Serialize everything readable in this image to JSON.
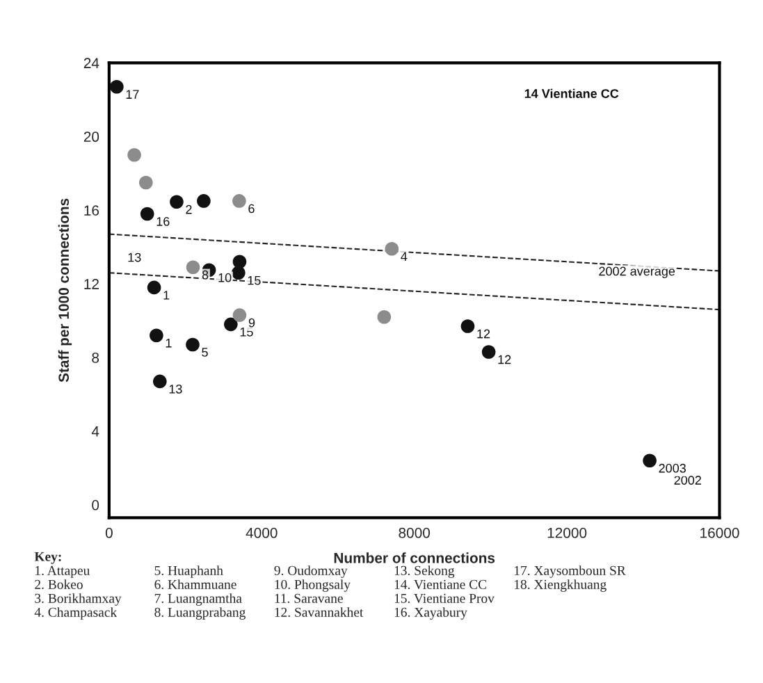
{
  "chart_data": {
    "type": "scatter",
    "xlabel": "Number of connections",
    "ylabel": "Staff per 1000 connections",
    "xlim": [
      0,
      16000
    ],
    "ylim": [
      -0.7,
      24
    ],
    "xticks": [
      0,
      4000,
      8000,
      12000,
      16000
    ],
    "yticks": [
      0,
      4,
      8,
      12,
      16,
      20,
      24
    ],
    "grid": false,
    "marker": "circle",
    "series": [
      {
        "color": "#111111",
        "x": [
          200,
          1000,
          1770,
          2480,
          2620,
          3420,
          3390,
          1180,
          3190,
          1240,
          2190,
          1330,
          9400,
          9950,
          14170
        ],
        "values": [
          22.7,
          15.8,
          16.45,
          16.5,
          12.75,
          13.2,
          12.6,
          11.8,
          9.8,
          9.2,
          8.7,
          6.7,
          9.7,
          8.3,
          2.4
        ]
      },
      {
        "color": "#8c8c8c",
        "x": [
          660,
          965,
          3410,
          2200,
          3420,
          7410,
          7210
        ],
        "values": [
          19.0,
          17.5,
          16.5,
          12.9,
          10.3,
          13.9,
          10.2
        ]
      },
      {
        "type": "line",
        "color": "#222222",
        "line_style": "dashed",
        "marker": "none",
        "x": [
          0,
          16000
        ],
        "values": [
          14.7,
          12.7
        ]
      },
      {
        "type": "line",
        "color": "#222222",
        "line_style": "dashed",
        "marker": "none",
        "x": [
          0,
          16000
        ],
        "values": [
          12.6,
          10.6
        ]
      }
    ],
    "annotations": [
      {
        "text": "17",
        "x": 200,
        "y": 22.7
      },
      {
        "text": "16",
        "x": 1000,
        "y": 15.8
      },
      {
        "text": "2",
        "x": 1770,
        "y": 16.45
      },
      {
        "text": "10",
        "x": 2620,
        "y": 12.75
      },
      {
        "text": "15",
        "x": 3390,
        "y": 12.6
      },
      {
        "text": "1",
        "x": 1180,
        "y": 11.8
      },
      {
        "text": "15",
        "x": 3190,
        "y": 9.8
      },
      {
        "text": "1",
        "x": 1240,
        "y": 9.2
      },
      {
        "text": "5",
        "x": 2190,
        "y": 8.7
      },
      {
        "text": "13",
        "x": 1330,
        "y": 6.7
      },
      {
        "text": "12",
        "x": 9400,
        "y": 9.7
      },
      {
        "text": "12",
        "x": 9950,
        "y": 8.3
      },
      {
        "text": "2003",
        "x": 14170,
        "y": 2.4
      },
      {
        "text": "6",
        "x": 3410,
        "y": 16.5
      },
      {
        "text": "8",
        "x": 2200,
        "y": 12.9
      },
      {
        "text": "9",
        "x": 3420,
        "y": 10.3
      },
      {
        "text": "4",
        "x": 7410,
        "y": 13.9
      },
      {
        "text": "2002 average",
        "x": 12600,
        "y": 13.1
      },
      "14 Vientiane CC",
      "13",
      "2002",
      "Key:",
      "1. Attapeu",
      "2. Bokeo",
      "3. Borikhamxay",
      "4. Champasack",
      "5. Huaphanh",
      "6. Khammuane",
      "7. Luangnamtha",
      "8. Luangprabang",
      "9. Oudomxay",
      "10. Phongsaly",
      "11. Saravane",
      "12. Savannakhet",
      "13. Sekong",
      "14. Vientiane CC",
      "15. Vientiane Prov",
      "16. Xayabury",
      "17. Xaysomboun SR",
      "18. Xiengkhuang"
    ]
  }
}
